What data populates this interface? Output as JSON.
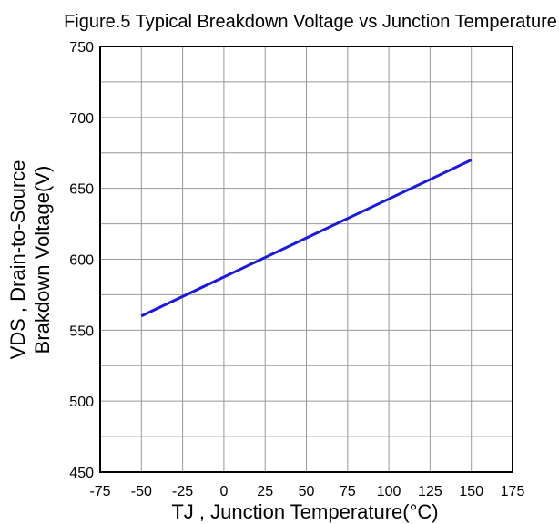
{
  "chart_data": {
    "type": "line",
    "title": "Figure.5 Typical Breakdown Voltage vs Junction Temperature",
    "xlabel": "TJ , Junction Temperature(°C)",
    "ylabel_line1": "VDS , Drain-to-Source",
    "ylabel_line2": "Brakdown Voltage(V)",
    "xlim": [
      -75,
      175
    ],
    "ylim": [
      450,
      750
    ],
    "x_ticks": [
      -75,
      -50,
      -25,
      0,
      25,
      50,
      75,
      100,
      125,
      150,
      175
    ],
    "x_tick_labels": [
      "-75",
      "-50",
      "-25",
      "0",
      "25",
      "50",
      "75",
      "100",
      "125",
      "150",
      "175"
    ],
    "y_ticks": [
      450,
      500,
      550,
      600,
      650,
      700,
      750
    ],
    "y_tick_labels": [
      "450",
      "500",
      "550",
      "600",
      "650",
      "700",
      "750"
    ],
    "y_minor_ticks": [
      475,
      525,
      575,
      625,
      675,
      725
    ],
    "grid": true,
    "series": [
      {
        "x": [
          -50,
          150
        ],
        "y": [
          560,
          670
        ]
      }
    ],
    "colors": {
      "line": "#1a1adc",
      "grid": "#999999",
      "frame": "#000000",
      "background": "#ffffff"
    }
  }
}
